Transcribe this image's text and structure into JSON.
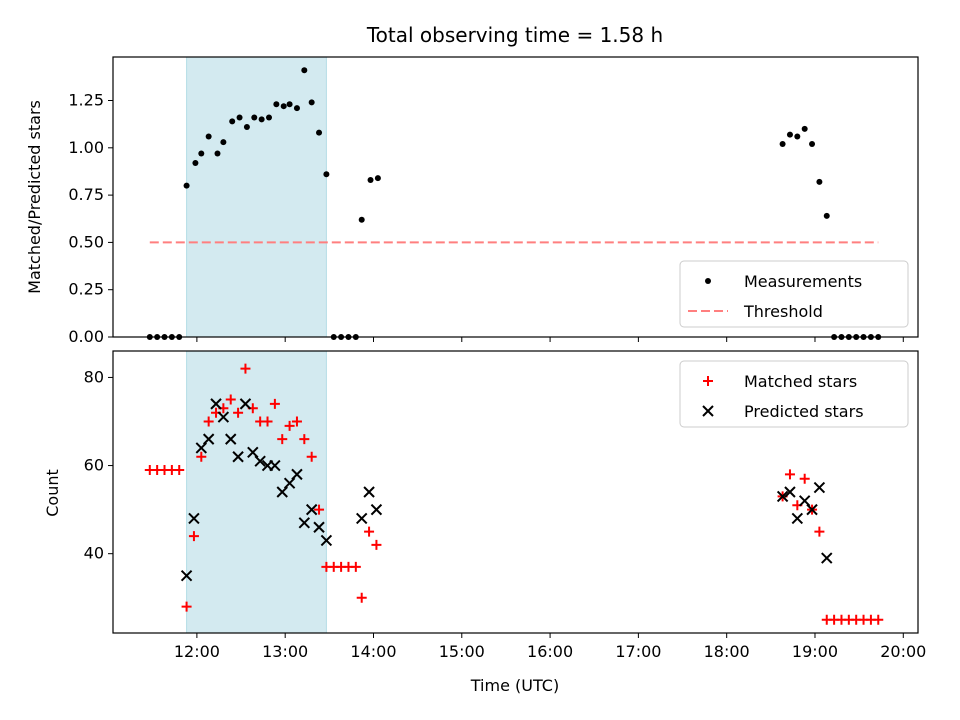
{
  "chart_data": [
    {
      "type": "scatter",
      "title": "Total observing time = 1.58 h",
      "xlabel": "",
      "ylabel": "Matched/Predicted stars",
      "xlim": [
        "11:03",
        "20:10"
      ],
      "ylim": [
        0,
        1.48
      ],
      "yticks": [
        0.0,
        0.25,
        0.5,
        0.75,
        1.0,
        1.25
      ],
      "ytick_labels": [
        "0.00",
        "0.25",
        "0.50",
        "0.75",
        "1.00",
        "1.25"
      ],
      "xticks": [
        "12:00",
        "13:00",
        "14:00",
        "15:00",
        "16:00",
        "17:00",
        "18:00",
        "19:00",
        "20:00"
      ],
      "shaded_interval": {
        "start": "11:53",
        "end": "13:28",
        "color": "#d3eaf0"
      },
      "legend_position": "lower right",
      "series": [
        {
          "name": "Measurements",
          "marker": "dot",
          "color": "#000000",
          "points": [
            [
              "11:28",
              0
            ],
            [
              "11:33",
              0
            ],
            [
              "11:38",
              0
            ],
            [
              "11:43",
              0
            ],
            [
              "11:48",
              0
            ],
            [
              "11:53",
              0.8
            ],
            [
              "11:59",
              0.92
            ],
            [
              "12:03",
              0.97
            ],
            [
              "12:08",
              1.06
            ],
            [
              "12:14",
              0.97
            ],
            [
              "12:18",
              1.03
            ],
            [
              "12:24",
              1.14
            ],
            [
              "12:29",
              1.16
            ],
            [
              "12:34",
              1.11
            ],
            [
              "12:39",
              1.16
            ],
            [
              "12:44",
              1.15
            ],
            [
              "12:49",
              1.16
            ],
            [
              "12:54",
              1.23
            ],
            [
              "12:59",
              1.22
            ],
            [
              "13:03",
              1.23
            ],
            [
              "13:08",
              1.21
            ],
            [
              "13:13",
              1.41
            ],
            [
              "13:18",
              1.24
            ],
            [
              "13:23",
              1.08
            ],
            [
              "13:28",
              0.86
            ],
            [
              "13:33",
              0
            ],
            [
              "13:38",
              0
            ],
            [
              "13:43",
              0
            ],
            [
              "13:48",
              0
            ],
            [
              "13:52",
              0.62
            ],
            [
              "13:58",
              0.83
            ],
            [
              "14:03",
              0.84
            ],
            [
              "18:38",
              1.02
            ],
            [
              "18:43",
              1.07
            ],
            [
              "18:48",
              1.06
            ],
            [
              "18:53",
              1.1
            ],
            [
              "18:58",
              1.02
            ],
            [
              "19:03",
              0.82
            ],
            [
              "19:08",
              0.64
            ],
            [
              "19:13",
              0
            ],
            [
              "19:18",
              0
            ],
            [
              "19:23",
              0
            ],
            [
              "19:28",
              0
            ],
            [
              "19:33",
              0
            ],
            [
              "19:38",
              0
            ],
            [
              "19:43",
              0
            ]
          ]
        },
        {
          "name": "Threshold",
          "type": "line",
          "style": "dashed",
          "color": "#ff7f7f",
          "points": [
            [
              "11:28",
              0.5
            ],
            [
              "19:43",
              0.5
            ]
          ]
        }
      ]
    },
    {
      "type": "scatter",
      "title": "",
      "xlabel": "Time (UTC)",
      "ylabel": "Count",
      "xlim": [
        "11:03",
        "20:10"
      ],
      "ylim": [
        22,
        86
      ],
      "yticks": [
        40,
        60,
        80
      ],
      "ytick_labels": [
        "40",
        "60",
        "80"
      ],
      "xticks": [
        "12:00",
        "13:00",
        "14:00",
        "15:00",
        "16:00",
        "17:00",
        "18:00",
        "19:00",
        "20:00"
      ],
      "shaded_interval": {
        "start": "11:53",
        "end": "13:28",
        "color": "#d3eaf0"
      },
      "legend_position": "upper right",
      "series": [
        {
          "name": "Matched stars",
          "marker": "plus",
          "color": "#ff0000",
          "points": [
            [
              "11:28",
              59
            ],
            [
              "11:33",
              59
            ],
            [
              "11:38",
              59
            ],
            [
              "11:43",
              59
            ],
            [
              "11:48",
              59
            ],
            [
              "11:53",
              28
            ],
            [
              "11:58",
              44
            ],
            [
              "12:03",
              62
            ],
            [
              "12:08",
              70
            ],
            [
              "12:13",
              72
            ],
            [
              "12:18",
              73
            ],
            [
              "12:23",
              75
            ],
            [
              "12:28",
              72
            ],
            [
              "12:33",
              82
            ],
            [
              "12:38",
              73
            ],
            [
              "12:43",
              70
            ],
            [
              "12:48",
              70
            ],
            [
              "12:53",
              74
            ],
            [
              "12:58",
              66
            ],
            [
              "13:03",
              69
            ],
            [
              "13:08",
              70
            ],
            [
              "13:13",
              66
            ],
            [
              "13:18",
              62
            ],
            [
              "13:23",
              50
            ],
            [
              "13:28",
              37
            ],
            [
              "13:33",
              37
            ],
            [
              "13:38",
              37
            ],
            [
              "13:43",
              37
            ],
            [
              "13:48",
              37
            ],
            [
              "13:52",
              30
            ],
            [
              "13:57",
              45
            ],
            [
              "14:02",
              42
            ],
            [
              "18:38",
              53
            ],
            [
              "18:43",
              58
            ],
            [
              "18:48",
              51
            ],
            [
              "18:53",
              57
            ],
            [
              "18:58",
              50
            ],
            [
              "19:03",
              45
            ],
            [
              "19:08",
              25
            ],
            [
              "19:13",
              25
            ],
            [
              "19:18",
              25
            ],
            [
              "19:23",
              25
            ],
            [
              "19:28",
              25
            ],
            [
              "19:33",
              25
            ],
            [
              "19:38",
              25
            ],
            [
              "19:43",
              25
            ]
          ]
        },
        {
          "name": "Predicted stars",
          "marker": "x",
          "color": "#000000",
          "points": [
            [
              "11:53",
              35
            ],
            [
              "11:58",
              48
            ],
            [
              "12:03",
              64
            ],
            [
              "12:08",
              66
            ],
            [
              "12:13",
              74
            ],
            [
              "12:18",
              71
            ],
            [
              "12:23",
              66
            ],
            [
              "12:28",
              62
            ],
            [
              "12:33",
              74
            ],
            [
              "12:38",
              63
            ],
            [
              "12:43",
              61
            ],
            [
              "12:48",
              60
            ],
            [
              "12:53",
              60
            ],
            [
              "12:58",
              54
            ],
            [
              "13:03",
              56
            ],
            [
              "13:08",
              58
            ],
            [
              "13:13",
              47
            ],
            [
              "13:18",
              50
            ],
            [
              "13:23",
              46
            ],
            [
              "13:28",
              43
            ],
            [
              "13:52",
              48
            ],
            [
              "13:57",
              54
            ],
            [
              "14:02",
              50
            ],
            [
              "18:38",
              53
            ],
            [
              "18:43",
              54
            ],
            [
              "18:48",
              48
            ],
            [
              "18:53",
              52
            ],
            [
              "18:58",
              50
            ],
            [
              "19:03",
              55
            ],
            [
              "19:08",
              39
            ]
          ]
        }
      ]
    }
  ]
}
